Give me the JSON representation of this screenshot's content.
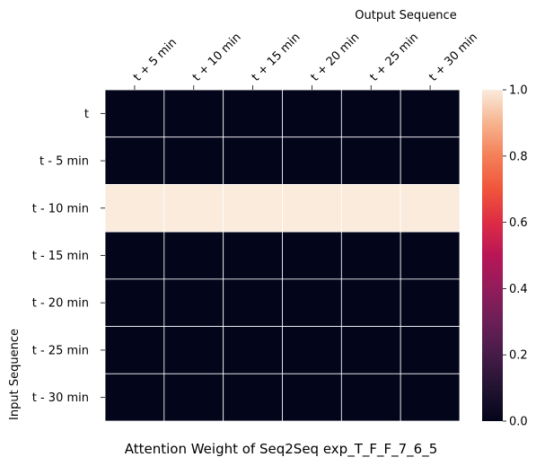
{
  "chart_data": {
    "type": "heatmap",
    "title": "Attention Weight of Seq2Seq exp_T_F_F_7_6_5",
    "xlabel": "Output Sequence",
    "ylabel": "Input Sequence",
    "x_categories": [
      "t + 5 min",
      "t + 10 min",
      "t + 15 min",
      "t + 20 min",
      "t + 25 min",
      "t + 30 min"
    ],
    "y_categories": [
      "t",
      "t - 5 min",
      "t - 10 min",
      "t - 15 min",
      "t - 20 min",
      "t - 25 min",
      "t - 30 min"
    ],
    "values": [
      [
        0,
        0,
        0,
        0,
        0,
        0
      ],
      [
        0,
        0,
        0,
        0,
        0,
        0
      ],
      [
        1,
        1,
        1,
        1,
        1,
        1
      ],
      [
        0,
        0,
        0,
        0,
        0,
        0
      ],
      [
        0,
        0,
        0,
        0,
        0,
        0
      ],
      [
        0,
        0,
        0,
        0,
        0,
        0
      ],
      [
        0,
        0,
        0,
        0,
        0,
        0
      ]
    ],
    "x_axis_position": "top",
    "colorbar": {
      "range": [
        0.0,
        1.0
      ],
      "ticks": [
        "0.0",
        "0.2",
        "0.4",
        "0.6",
        "0.8",
        "1.0"
      ],
      "colormap": "rocket",
      "low_color": "#03051a",
      "high_color": "#faebdd"
    },
    "cell_line_color": "#ffffff",
    "grid": false
  }
}
